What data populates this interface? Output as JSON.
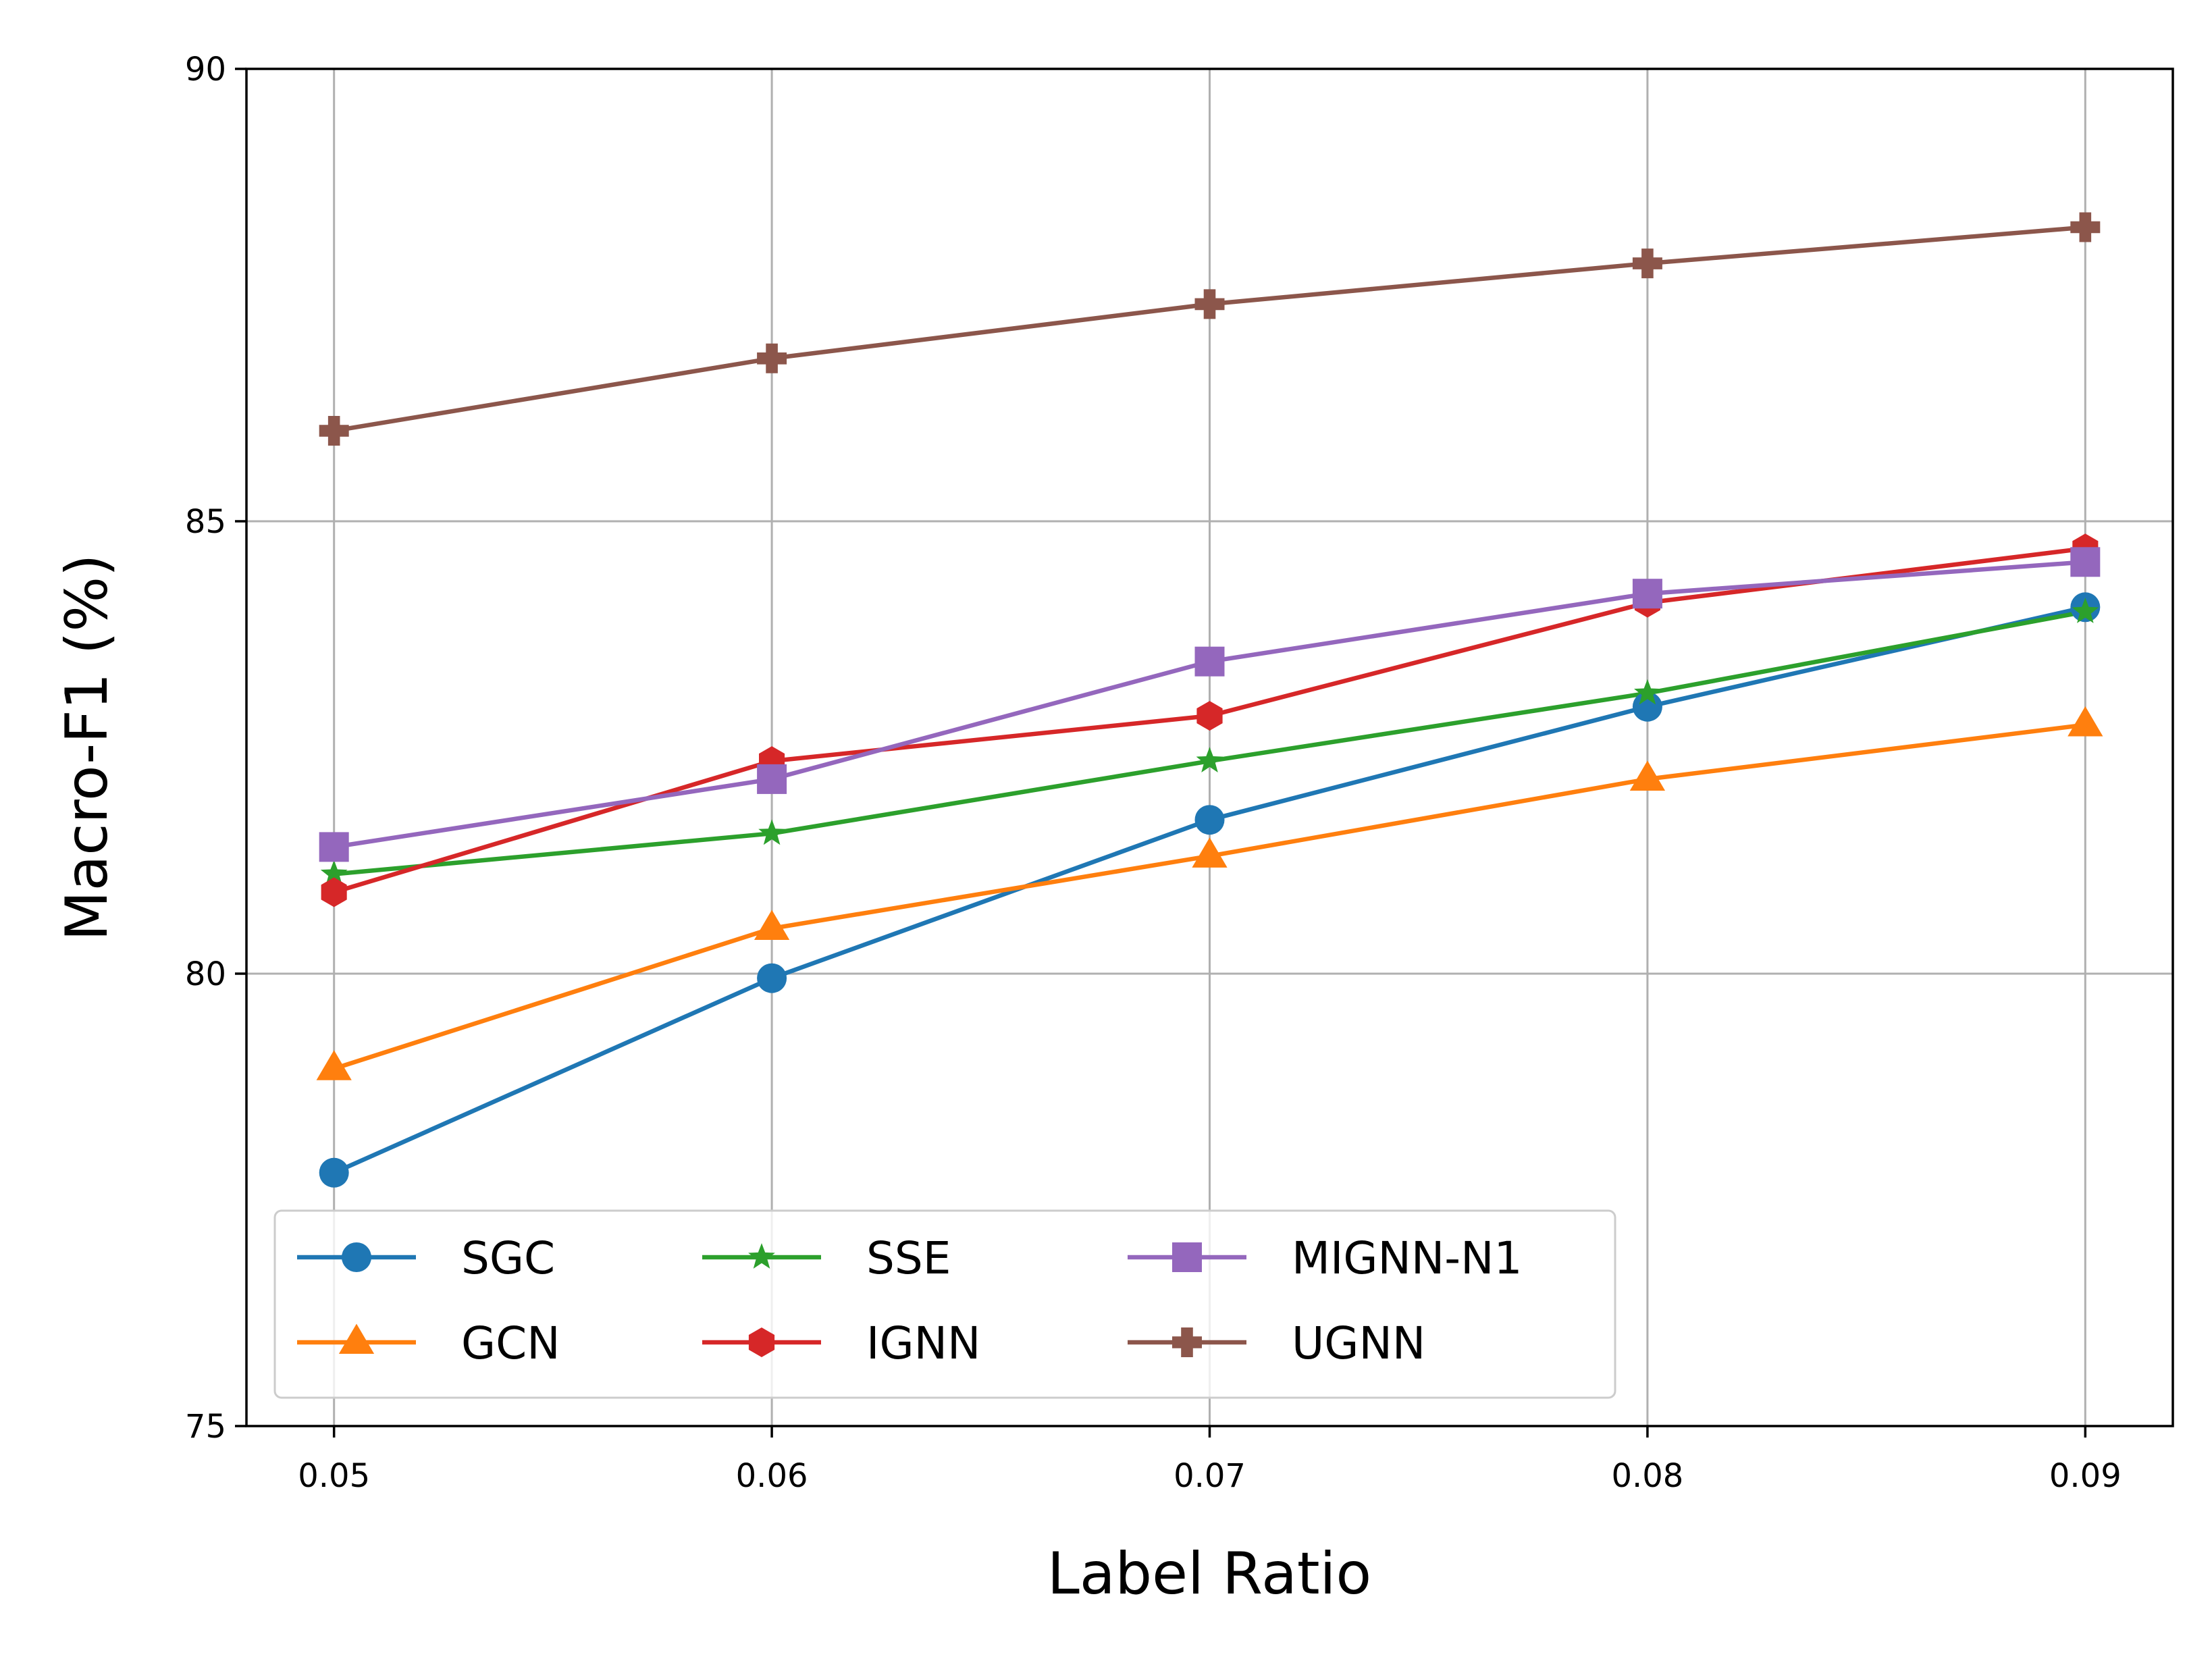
{
  "chart_data": {
    "type": "line",
    "title": "",
    "xlabel": "Label Ratio",
    "ylabel": "Macro-F1 (%)",
    "x": [
      0.05,
      0.06,
      0.07,
      0.08,
      0.09
    ],
    "x_tick_labels": [
      "0.05",
      "0.06",
      "0.07",
      "0.08",
      "0.09"
    ],
    "y_ticks": [
      75,
      80,
      85,
      90
    ],
    "y_tick_labels": [
      "75",
      "80",
      "85",
      "90"
    ],
    "xlim": [
      0.048,
      0.092
    ],
    "ylim": [
      75,
      90
    ],
    "grid": true,
    "legend_position": "lower-left",
    "legend_columns": 3,
    "series": [
      {
        "name": "SGC",
        "color": "#1f77b4",
        "marker": "circle",
        "values": [
          77.8,
          79.95,
          81.7,
          82.95,
          84.05
        ]
      },
      {
        "name": "GCN",
        "color": "#ff7f0e",
        "marker": "triangle",
        "values": [
          78.95,
          80.5,
          81.3,
          82.15,
          82.75
        ]
      },
      {
        "name": "SSE",
        "color": "#2ca02c",
        "marker": "star",
        "values": [
          81.1,
          81.55,
          82.35,
          83.1,
          84.0
        ]
      },
      {
        "name": "IGNN",
        "color": "#d62728",
        "marker": "hexagon",
        "values": [
          80.9,
          82.35,
          82.85,
          84.1,
          84.7
        ]
      },
      {
        "name": "MIGNN-N1",
        "color": "#9467bd",
        "marker": "square",
        "values": [
          81.4,
          82.15,
          83.45,
          84.2,
          84.55
        ]
      },
      {
        "name": "UGNN",
        "color": "#8c564b",
        "marker": "plus",
        "values": [
          86.0,
          86.8,
          87.4,
          87.85,
          88.25
        ]
      }
    ]
  }
}
